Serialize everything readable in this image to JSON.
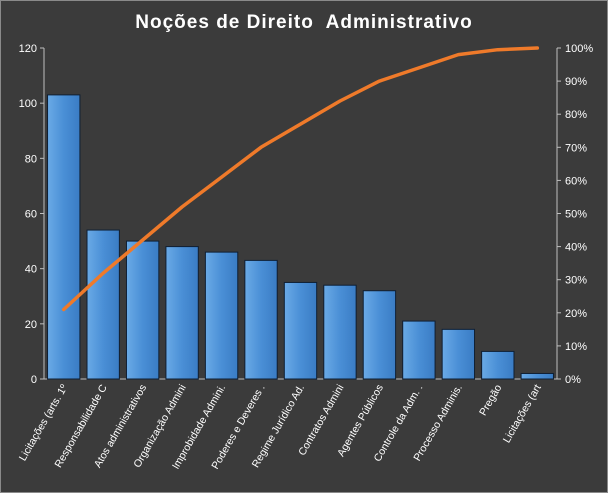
{
  "chart_data": {
    "type": "bar",
    "title": "Noções de Direito  Administrativo",
    "categories": [
      "Licitações (arts. 1º",
      "Responsabilidade C",
      "Atos administrativos",
      "Organização Admini",
      "Improbidade Admini.",
      "Poderes e Deveres .",
      "Regime Jurídico Ad.",
      "Contratos Admini",
      "Agentes Públicos",
      "Controle da Adm. .",
      "Processo Adminis.",
      "Pregão",
      "Licitações (art"
    ],
    "series": [
      {
        "type": "bar",
        "axis": "left",
        "values": [
          103,
          54,
          50,
          48,
          46,
          43,
          35,
          34,
          32,
          21,
          18,
          10,
          2
        ]
      },
      {
        "type": "line",
        "axis": "right",
        "values": [
          0.21,
          0.32,
          0.42,
          0.52,
          0.61,
          0.7,
          0.77,
          0.84,
          0.9,
          0.94,
          0.98,
          0.995,
          1.0
        ]
      }
    ],
    "y_left": {
      "min": 0,
      "max": 120,
      "ticks": [
        "0",
        "20",
        "40",
        "60",
        "80",
        "100",
        "120"
      ]
    },
    "y_right": {
      "min": 0,
      "max": 1,
      "ticks": [
        "0%",
        "10%",
        "20%",
        "30%",
        "40%",
        "50%",
        "60%",
        "70%",
        "80%",
        "90%",
        "100%"
      ]
    },
    "grid": false,
    "legend": "none",
    "colors": {
      "bar": "#4a8fd6",
      "bar_light": "#6aaae6",
      "bar_stroke": "#0f1f33",
      "line": "#ef7a2a",
      "background": "#3b3b3b",
      "text": "#ffffff"
    }
  }
}
